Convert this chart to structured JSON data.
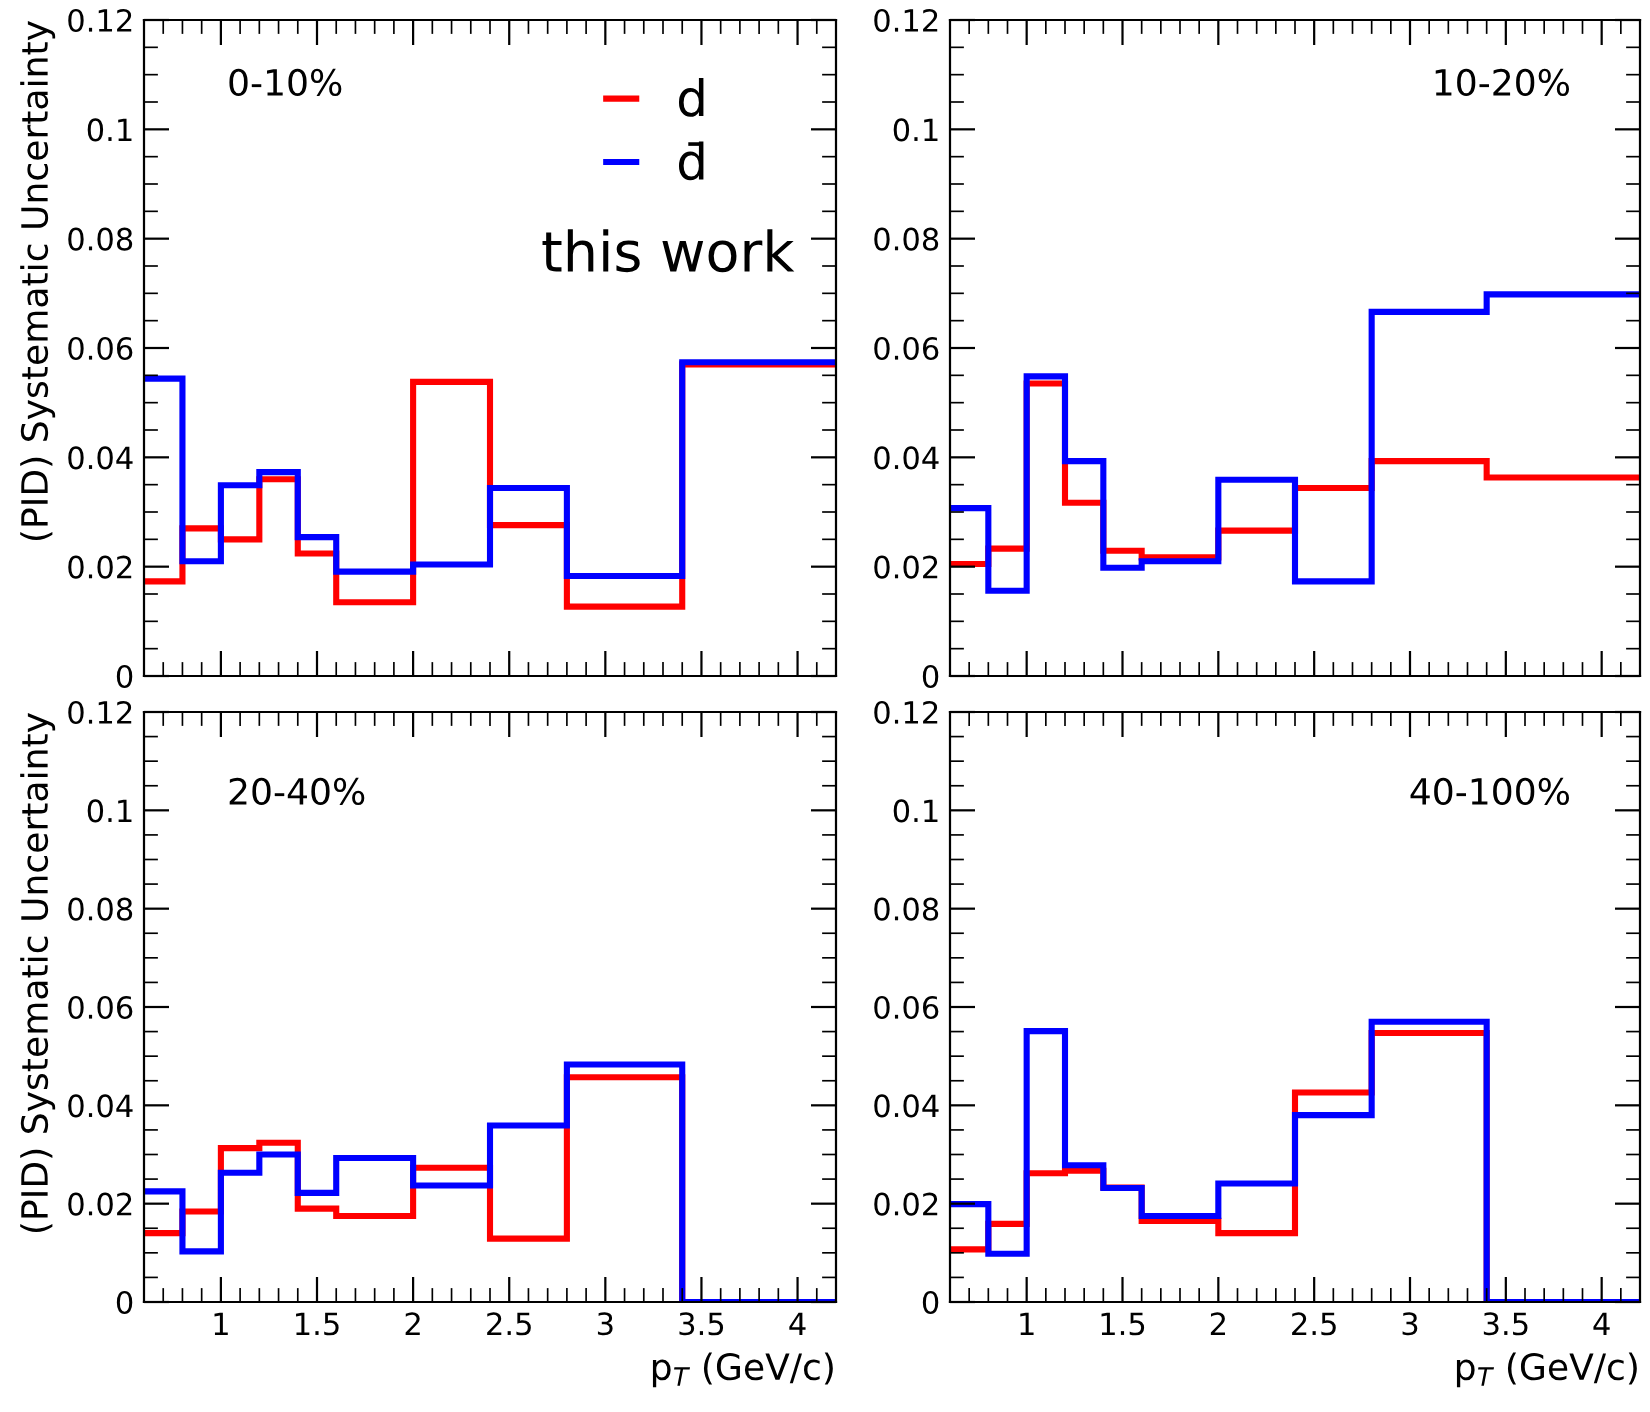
{
  "chart_data": [
    {
      "type": "histogram",
      "annotations": [
        "0-10%",
        "this work"
      ],
      "ylabel": "(PID) Systematic Uncertainty",
      "bins": [
        0.6,
        0.8,
        1.0,
        1.2,
        1.4,
        1.6,
        2.0,
        2.4,
        2.8,
        3.4,
        4.2
      ],
      "xlim": [
        0.6,
        4.2
      ],
      "ylim": [
        0,
        0.12
      ],
      "xticks": [
        1,
        1.5,
        2,
        2.5,
        3,
        3.5,
        4
      ],
      "yticks": [
        0,
        0.02,
        0.04,
        0.06,
        0.08,
        0.1,
        0.12
      ],
      "tick_labels": "y",
      "legend": "top right",
      "grid": false,
      "series": [
        {
          "name": "d",
          "color": "#ff0000",
          "values": [
            0.0173,
            0.027,
            0.025,
            0.036,
            0.0224,
            0.0135,
            0.0538,
            0.0276,
            0.0127,
            0.057
          ]
        },
        {
          "name": "d̄",
          "color": "#0000ff",
          "values": [
            0.0544,
            0.021,
            0.0349,
            0.0373,
            0.0254,
            0.0191,
            0.0204,
            0.0344,
            0.0183,
            0.0574
          ]
        }
      ]
    },
    {
      "type": "histogram",
      "annotations": [
        "10-20%"
      ],
      "bins": [
        0.6,
        0.8,
        1.0,
        1.2,
        1.4,
        1.6,
        2.0,
        2.4,
        2.8,
        3.4,
        4.2
      ],
      "xlim": [
        0.6,
        4.2
      ],
      "ylim": [
        0,
        0.12
      ],
      "xticks": [
        1,
        1.5,
        2,
        2.5,
        3,
        3.5,
        4
      ],
      "yticks": [
        0,
        0.02,
        0.04,
        0.06,
        0.08,
        0.1,
        0.12
      ],
      "tick_labels": "y",
      "grid": false,
      "series": [
        {
          "color": "#ff0000",
          "values": [
            0.0205,
            0.0233,
            0.0535,
            0.0317,
            0.0229,
            0.0217,
            0.0266,
            0.0344,
            0.0393,
            0.0363
          ]
        },
        {
          "color": "#0000ff",
          "values": [
            0.0307,
            0.0156,
            0.0548,
            0.0393,
            0.0198,
            0.021,
            0.0359,
            0.0173,
            0.0666,
            0.0698
          ]
        }
      ]
    },
    {
      "type": "histogram",
      "annotations": [
        "20-40%"
      ],
      "ylabel": "(PID) Systematic Uncertainty",
      "xlabel": "p$_{T}$ (GeV/c)",
      "bins": [
        0.6,
        0.8,
        1.0,
        1.2,
        1.4,
        1.6,
        2.0,
        2.4,
        2.8,
        3.4,
        4.2
      ],
      "xlim": [
        0.6,
        4.2
      ],
      "ylim": [
        0,
        0.12
      ],
      "xticks": [
        1,
        1.5,
        2,
        2.5,
        3,
        3.5,
        4
      ],
      "yticks": [
        0,
        0.02,
        0.04,
        0.06,
        0.08,
        0.1,
        0.12
      ],
      "grid": false,
      "series": [
        {
          "color": "#ff0000",
          "values": [
            0.014,
            0.0184,
            0.0313,
            0.0324,
            0.019,
            0.0175,
            0.0273,
            0.0129,
            0.0457,
            0
          ]
        },
        {
          "color": "#0000ff",
          "values": [
            0.0225,
            0.0103,
            0.0263,
            0.03,
            0.0222,
            0.0293,
            0.0237,
            0.0359,
            0.0483,
            0
          ]
        }
      ]
    },
    {
      "type": "histogram",
      "annotations": [
        "40-100%"
      ],
      "xlabel": "p$_{T}$ (GeV/c)",
      "bins": [
        0.6,
        0.8,
        1.0,
        1.2,
        1.4,
        1.6,
        2.0,
        2.4,
        2.8,
        3.4,
        4.2
      ],
      "xlim": [
        0.6,
        4.2
      ],
      "ylim": [
        0,
        0.12
      ],
      "xticks": [
        1,
        1.5,
        2,
        2.5,
        3,
        3.5,
        4
      ],
      "yticks": [
        0,
        0.02,
        0.04,
        0.06,
        0.08,
        0.1,
        0.12
      ],
      "grid": false,
      "series": [
        {
          "color": "#ff0000",
          "values": [
            0.0107,
            0.0159,
            0.0262,
            0.0267,
            0.0233,
            0.0165,
            0.014,
            0.0426,
            0.0547,
            0
          ]
        },
        {
          "color": "#0000ff",
          "values": [
            0.0199,
            0.0098,
            0.0551,
            0.0278,
            0.0232,
            0.0175,
            0.0241,
            0.038,
            0.057,
            0
          ]
        }
      ]
    }
  ]
}
